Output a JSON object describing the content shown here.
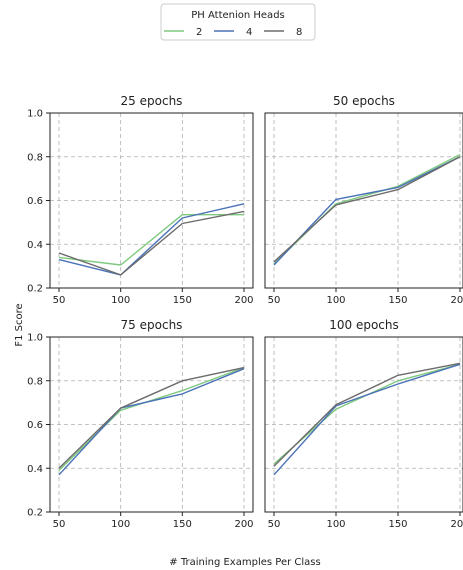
{
  "legend": {
    "title": "PH Attenion Heads",
    "entries": [
      {
        "label": "2",
        "color": "#7fc97f"
      },
      {
        "label": "4",
        "color": "#4a72b8"
      },
      {
        "label": "8",
        "color": "#6b6b6b"
      }
    ]
  },
  "xlabel": "# Training Examples Per Class",
  "ylabel": "F1 Score",
  "chart_data": {
    "type": "line",
    "shared_x": [
      50,
      100,
      150,
      200
    ],
    "x_ticks": [
      "50",
      "100",
      "150",
      "200"
    ],
    "y_ticks": [
      "0.2",
      "0.4",
      "0.6",
      "0.8",
      "1.0"
    ],
    "ylim": [
      0.2,
      1.0
    ],
    "grid": true,
    "legend_position": "top-center",
    "panels": [
      {
        "title": "25 epochs",
        "series": [
          {
            "name": "2",
            "color": "#7fc97f",
            "values": [
              0.34,
              0.305,
              0.535,
              0.535
            ]
          },
          {
            "name": "4",
            "color": "#4a72b8",
            "values": [
              0.33,
              0.26,
              0.52,
              0.585
            ]
          },
          {
            "name": "8",
            "color": "#6b6b6b",
            "values": [
              0.36,
              0.26,
              0.495,
              0.55
            ]
          }
        ]
      },
      {
        "title": "50 epochs",
        "series": [
          {
            "name": "2",
            "color": "#7fc97f",
            "values": [
              0.31,
              0.585,
              0.665,
              0.81
            ]
          },
          {
            "name": "4",
            "color": "#4a72b8",
            "values": [
              0.305,
              0.605,
              0.66,
              0.8
            ]
          },
          {
            "name": "8",
            "color": "#6b6b6b",
            "values": [
              0.32,
              0.58,
              0.65,
              0.8
            ]
          }
        ]
      },
      {
        "title": "75 epochs",
        "series": [
          {
            "name": "2",
            "color": "#7fc97f",
            "values": [
              0.39,
              0.665,
              0.755,
              0.86
            ]
          },
          {
            "name": "4",
            "color": "#4a72b8",
            "values": [
              0.37,
              0.675,
              0.74,
              0.855
            ]
          },
          {
            "name": "8",
            "color": "#6b6b6b",
            "values": [
              0.4,
              0.675,
              0.8,
              0.86
            ]
          }
        ]
      },
      {
        "title": "100 epochs",
        "series": [
          {
            "name": "2",
            "color": "#7fc97f",
            "values": [
              0.42,
              0.67,
              0.8,
              0.875
            ]
          },
          {
            "name": "4",
            "color": "#4a72b8",
            "values": [
              0.37,
              0.685,
              0.785,
              0.875
            ]
          },
          {
            "name": "8",
            "color": "#6b6b6b",
            "values": [
              0.41,
              0.69,
              0.825,
              0.88
            ]
          }
        ]
      }
    ]
  }
}
